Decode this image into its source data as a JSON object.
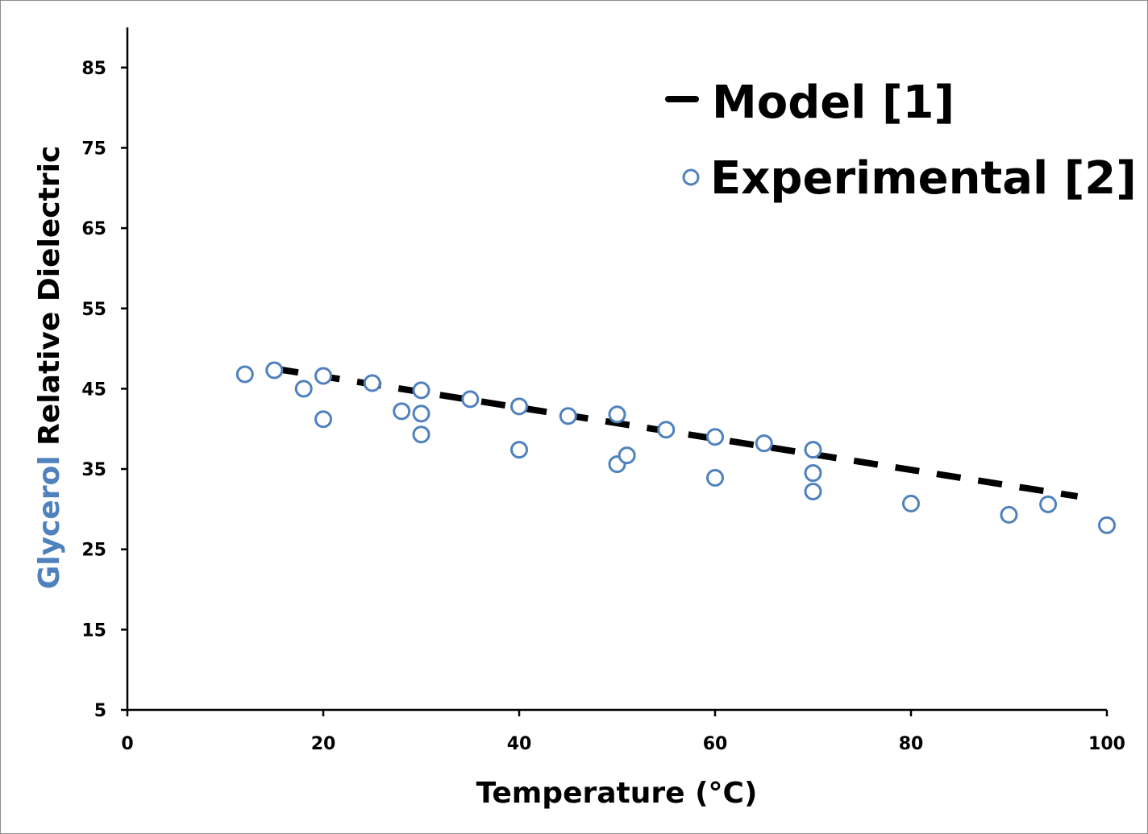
{
  "chart_data": {
    "type": "scatter",
    "xlabel": "Temperature (°C)",
    "ylabel_parts": {
      "highlight": "Glycerol",
      "rest": " Relative Dielectric"
    },
    "xlim": [
      0,
      100
    ],
    "ylim": [
      5,
      90
    ],
    "x_ticks": [
      0,
      20,
      40,
      60,
      80,
      100
    ],
    "y_ticks": [
      5,
      15,
      25,
      35,
      45,
      55,
      65,
      75,
      85
    ],
    "grid": false,
    "legend_position": "top-right",
    "colors": {
      "experimental": "#4f81bd",
      "model": "#000000",
      "highlight_label": "#4f81bd"
    },
    "series": [
      {
        "name": "Model [1]",
        "style": "dashed-line",
        "x": [
          15,
          97
        ],
        "y": [
          47.5,
          31.6
        ]
      },
      {
        "name": "Experimental [2]",
        "style": "open-circle",
        "x": [
          12,
          15,
          18,
          20,
          20,
          25,
          28,
          30,
          30,
          30,
          35,
          40,
          40,
          45,
          50,
          50,
          51,
          55,
          60,
          60,
          65,
          70,
          70,
          70,
          80,
          90,
          94,
          100
        ],
        "y": [
          46.8,
          47.3,
          45.0,
          46.6,
          41.2,
          45.7,
          42.2,
          44.8,
          41.9,
          39.3,
          43.7,
          42.8,
          37.4,
          41.6,
          41.8,
          35.6,
          36.7,
          39.9,
          39.0,
          33.9,
          38.2,
          37.4,
          34.5,
          32.2,
          30.7,
          29.3,
          30.6,
          28.0
        ]
      }
    ]
  }
}
